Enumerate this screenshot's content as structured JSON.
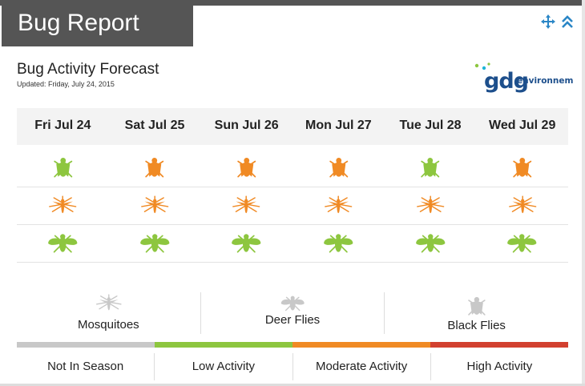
{
  "header": {
    "title": "Bug Report"
  },
  "controls": {
    "move_icon": "move-arrows-icon",
    "collapse_icon": "double-chevron-up-icon"
  },
  "forecast": {
    "title": "Bug Activity Forecast",
    "updated": "Updated: Friday, July 24, 2015"
  },
  "logo": {
    "mark": "gdg",
    "text": "environnement"
  },
  "days": [
    "Fri Jul 24",
    "Sat Jul 25",
    "Sun Jul 26",
    "Mon Jul 27",
    "Tue Jul 28",
    "Wed Jul 29"
  ],
  "rows": [
    {
      "bug": "black-fly",
      "levels": [
        "low",
        "moderate",
        "moderate",
        "moderate",
        "low",
        "moderate"
      ]
    },
    {
      "bug": "mosquito",
      "levels": [
        "moderate",
        "moderate",
        "moderate",
        "moderate",
        "moderate",
        "moderate"
      ]
    },
    {
      "bug": "deer-fly",
      "levels": [
        "low",
        "low",
        "low",
        "low",
        "low",
        "low"
      ]
    }
  ],
  "legend": [
    {
      "bug": "mosquito",
      "label": "Mosquitoes"
    },
    {
      "bug": "deer-fly",
      "label": "Deer Flies"
    },
    {
      "bug": "black-fly",
      "label": "Black Flies"
    }
  ],
  "scale": [
    {
      "level": "none",
      "label": "Not In Season",
      "color": "#c8c8c8"
    },
    {
      "level": "low",
      "label": "Low Activity",
      "color": "#8dc63f"
    },
    {
      "level": "moderate",
      "label": "Moderate Activity",
      "color": "#f08a24"
    },
    {
      "level": "high",
      "label": "High Activity",
      "color": "#d2402f"
    }
  ]
}
